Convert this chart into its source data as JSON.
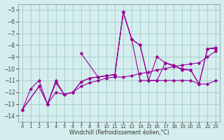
{
  "background_color": "#d4eeee",
  "grid_color": "#aacccc",
  "line_color": "#990099",
  "xlabel": "Windchill (Refroidissement éolien,°C)",
  "xlim": [
    -0.5,
    23.5
  ],
  "ylim": [
    -14.5,
    -4.5
  ],
  "xticks": [
    0,
    1,
    2,
    3,
    4,
    5,
    6,
    7,
    8,
    9,
    10,
    11,
    12,
    13,
    14,
    15,
    16,
    17,
    18,
    19,
    20,
    21,
    22,
    23
  ],
  "yticks": [
    -5,
    -6,
    -7,
    -8,
    -9,
    -10,
    -11,
    -12,
    -13,
    -14
  ],
  "series": [
    {
      "x": [
        0,
        2,
        3,
        4,
        5,
        6,
        7,
        8,
        9,
        10,
        11,
        12,
        13,
        14,
        15,
        16,
        17,
        18,
        19,
        20,
        21,
        22,
        23
      ],
      "y": [
        -13.5,
        -11.5,
        -13.0,
        -11.0,
        -12.2,
        -12.0,
        -11.1,
        -10.8,
        -10.7,
        -10.6,
        -10.5,
        -5.2,
        -7.5,
        -11.0,
        -11.0,
        -11.0,
        -11.0,
        -11.0,
        -11.0,
        -11.0,
        -11.3,
        -11.3,
        -11.0
      ]
    },
    {
      "x": [
        0,
        1,
        2,
        3,
        4,
        5,
        6,
        7,
        8,
        9,
        10,
        11,
        12,
        13,
        14,
        15,
        16,
        17,
        18,
        19,
        20,
        21,
        22,
        23
      ],
      "y": [
        -13.5,
        -11.7,
        -11.0,
        -13.0,
        -11.2,
        -12.2,
        -12.0,
        -11.1,
        -10.8,
        -10.7,
        -10.6,
        -10.5,
        -5.2,
        -7.5,
        -8.0,
        -11.0,
        -11.0,
        -9.5,
        -9.7,
        -10.1,
        -10.1,
        -11.3,
        -8.3,
        -8.3
      ]
    },
    {
      "x": [
        0,
        2,
        3,
        4,
        5,
        6,
        7,
        8,
        9,
        10,
        11,
        12,
        13,
        14,
        15,
        16,
        17,
        18,
        19,
        20,
        21,
        22,
        23
      ],
      "y": [
        -13.5,
        -11.5,
        -13.0,
        -12.0,
        -12.2,
        -12.0,
        -11.5,
        -11.2,
        -11.0,
        -10.8,
        -10.7,
        -10.7,
        -10.6,
        -10.4,
        -10.3,
        -10.1,
        -10.0,
        -9.8,
        -9.7,
        -9.6,
        -9.5,
        -9.0,
        -8.5
      ]
    },
    {
      "x": [
        7,
        9,
        10,
        11,
        12,
        13,
        14,
        15,
        16,
        17,
        18,
        19,
        20,
        21,
        22,
        23
      ],
      "y": [
        -8.7,
        -10.7,
        -10.6,
        -10.5,
        -5.2,
        -7.5,
        -8.0,
        -11.0,
        -9.0,
        -9.5,
        -9.8,
        -10.0,
        -10.1,
        -11.3,
        -8.3,
        -8.2
      ]
    }
  ]
}
